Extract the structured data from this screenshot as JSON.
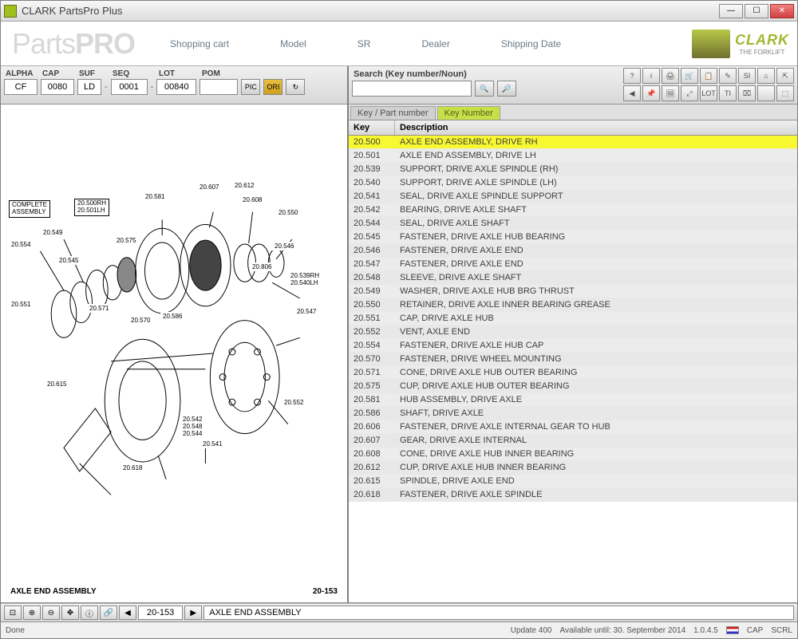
{
  "window": {
    "title": "CLARK PartsPro Plus"
  },
  "topnav": {
    "logo_parts": "Parts",
    "logo_pro": "PRO",
    "links": {
      "cart": "Shopping cart",
      "model": "Model",
      "sr": "SR",
      "dealer": "Dealer",
      "ship": "Shipping Date"
    },
    "brand": "CLARK",
    "brand_tag": "THE FORKLIFT"
  },
  "fields": {
    "labels": {
      "alpha": "ALPHA",
      "cap": "CAP",
      "suf": "SUF",
      "seq": "SEQ",
      "lot": "LOT",
      "pom": "POM"
    },
    "values": {
      "alpha": "CF",
      "cap": "0080",
      "suf": "LD",
      "seq": "0001",
      "lot": "00840",
      "pom": ""
    },
    "pic_label": "PIC",
    "ori_label": "ORI"
  },
  "search": {
    "label": "Search (Key number/Noun)",
    "value": ""
  },
  "toolicons": [
    "?",
    "i",
    "🖨",
    "🛒",
    "📋",
    "✎",
    "SI",
    "⌂",
    "⇱",
    "◀",
    "📌",
    "🖼",
    "⤢",
    "LOT",
    "TI",
    "⌧",
    "",
    "⬚"
  ],
  "diagram": {
    "title": "AXLE END ASSEMBLY",
    "page_code": "20-153",
    "complete_label": "COMPLETE\nASSEMBLY",
    "callouts": [
      "20.500RH",
      "20.501LH",
      "20.554",
      "20.549",
      "20.545",
      "20.551",
      "20.571",
      "20.575",
      "20.570",
      "20.581",
      "20.586",
      "20.607",
      "20.612",
      "20.608",
      "20.550",
      "20.806",
      "20.546",
      "20.539RH",
      "20.540LH",
      "20.547",
      "20.615",
      "20.618",
      "20.541",
      "20.542",
      "20.548",
      "20.544",
      "20.552"
    ]
  },
  "tabs": {
    "inactive": "Key / Part number",
    "active": "Key Number"
  },
  "grid": {
    "header": {
      "key": "Key",
      "desc": "Description"
    },
    "rows": [
      {
        "key": "20.500",
        "desc": "AXLE END ASSEMBLY, DRIVE RH",
        "sel": true
      },
      {
        "key": "20.501",
        "desc": "AXLE END ASSEMBLY, DRIVE LH"
      },
      {
        "key": "20.539",
        "desc": "SUPPORT, DRIVE AXLE SPINDLE (RH)"
      },
      {
        "key": "20.540",
        "desc": "SUPPORT, DRIVE AXLE SPINDLE (LH)"
      },
      {
        "key": "20.541",
        "desc": "SEAL, DRIVE AXLE SPINDLE SUPPORT"
      },
      {
        "key": "20.542",
        "desc": "BEARING, DRIVE AXLE SHAFT"
      },
      {
        "key": "20.544",
        "desc": "SEAL, DRIVE AXLE SHAFT"
      },
      {
        "key": "20.545",
        "desc": "FASTENER, DRIVE AXLE HUB BEARING"
      },
      {
        "key": "20.546",
        "desc": "FASTENER, DRIVE AXLE END"
      },
      {
        "key": "20.547",
        "desc": "FASTENER, DRIVE AXLE END"
      },
      {
        "key": "20.548",
        "desc": "SLEEVE, DRIVE AXLE SHAFT"
      },
      {
        "key": "20.549",
        "desc": "WASHER, DRIVE AXLE HUB BRG THRUST"
      },
      {
        "key": "20.550",
        "desc": "RETAINER, DRIVE AXLE INNER BEARING GREASE"
      },
      {
        "key": "20.551",
        "desc": "CAP, DRIVE AXLE HUB"
      },
      {
        "key": "20.552",
        "desc": "VENT, AXLE END"
      },
      {
        "key": "20.554",
        "desc": "FASTENER, DRIVE AXLE HUB CAP"
      },
      {
        "key": "20.570",
        "desc": "FASTENER, DRIVE WHEEL MOUNTING"
      },
      {
        "key": "20.571",
        "desc": "CONE, DRIVE AXLE HUB OUTER BEARING"
      },
      {
        "key": "20.575",
        "desc": "CUP, DRIVE AXLE HUB OUTER BEARING"
      },
      {
        "key": "20.581",
        "desc": "HUB ASSEMBLY, DRIVE AXLE"
      },
      {
        "key": "20.586",
        "desc": "SHAFT, DRIVE AXLE"
      },
      {
        "key": "20.606",
        "desc": "FASTENER, DRIVE AXLE INTERNAL GEAR TO HUB"
      },
      {
        "key": "20.607",
        "desc": "GEAR, DRIVE AXLE INTERNAL"
      },
      {
        "key": "20.608",
        "desc": "CONE, DRIVE AXLE HUB INNER BEARING"
      },
      {
        "key": "20.612",
        "desc": "CUP, DRIVE AXLE HUB INNER BEARING"
      },
      {
        "key": "20.615",
        "desc": "SPINDLE, DRIVE AXLE END"
      },
      {
        "key": "20.618",
        "desc": "FASTENER, DRIVE AXLE SPINDLE"
      }
    ]
  },
  "bottombar": {
    "page": "20-153",
    "desc": "AXLE END ASSEMBLY"
  },
  "status": {
    "done": "Done",
    "update": "Update 400",
    "avail": "Available until: 30. September 2014",
    "ver": "1.0.4.5",
    "cap": "CAP",
    "scrl": "SCRL"
  }
}
